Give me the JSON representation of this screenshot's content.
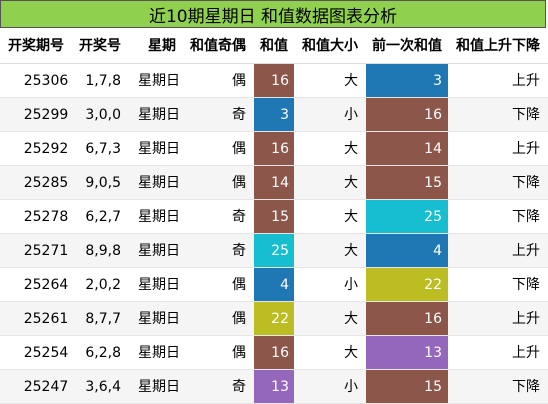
{
  "title": "近10期星期日 和值数据图表分析",
  "headers": [
    "开奖期号",
    "开奖号",
    "星期",
    "和值奇偶",
    "和值",
    "和值大小",
    "前一次和值",
    "和值上升下降"
  ],
  "colors": {
    "title_bg": "#8fd14f",
    "brown": "#8c564b",
    "blue": "#1f77b4",
    "cyan": "#17becf",
    "olive": "#bcbd22",
    "purple": "#9467bd"
  },
  "rows": [
    {
      "issue": "25306",
      "nums": "1,7,8",
      "weekday": "星期日",
      "parity": "偶",
      "sum": "16",
      "sum_color": "#8c564b",
      "size": "大",
      "prev_sum": "3",
      "prev_color": "#1f77b4",
      "trend": "上升"
    },
    {
      "issue": "25299",
      "nums": "3,0,0",
      "weekday": "星期日",
      "parity": "奇",
      "sum": "3",
      "sum_color": "#1f77b4",
      "size": "小",
      "prev_sum": "16",
      "prev_color": "#8c564b",
      "trend": "下降"
    },
    {
      "issue": "25292",
      "nums": "6,7,3",
      "weekday": "星期日",
      "parity": "偶",
      "sum": "16",
      "sum_color": "#8c564b",
      "size": "大",
      "prev_sum": "14",
      "prev_color": "#8c564b",
      "trend": "上升"
    },
    {
      "issue": "25285",
      "nums": "9,0,5",
      "weekday": "星期日",
      "parity": "偶",
      "sum": "14",
      "sum_color": "#8c564b",
      "size": "大",
      "prev_sum": "15",
      "prev_color": "#8c564b",
      "trend": "下降"
    },
    {
      "issue": "25278",
      "nums": "6,2,7",
      "weekday": "星期日",
      "parity": "奇",
      "sum": "15",
      "sum_color": "#8c564b",
      "size": "大",
      "prev_sum": "25",
      "prev_color": "#17becf",
      "trend": "下降"
    },
    {
      "issue": "25271",
      "nums": "8,9,8",
      "weekday": "星期日",
      "parity": "奇",
      "sum": "25",
      "sum_color": "#17becf",
      "size": "大",
      "prev_sum": "4",
      "prev_color": "#1f77b4",
      "trend": "上升"
    },
    {
      "issue": "25264",
      "nums": "2,0,2",
      "weekday": "星期日",
      "parity": "偶",
      "sum": "4",
      "sum_color": "#1f77b4",
      "size": "小",
      "prev_sum": "22",
      "prev_color": "#bcbd22",
      "trend": "下降"
    },
    {
      "issue": "25261",
      "nums": "8,7,7",
      "weekday": "星期日",
      "parity": "偶",
      "sum": "22",
      "sum_color": "#bcbd22",
      "size": "大",
      "prev_sum": "16",
      "prev_color": "#8c564b",
      "trend": "上升"
    },
    {
      "issue": "25254",
      "nums": "6,2,8",
      "weekday": "星期日",
      "parity": "偶",
      "sum": "16",
      "sum_color": "#8c564b",
      "size": "大",
      "prev_sum": "13",
      "prev_color": "#9467bd",
      "trend": "上升"
    },
    {
      "issue": "25247",
      "nums": "3,6,4",
      "weekday": "星期日",
      "parity": "奇",
      "sum": "13",
      "sum_color": "#9467bd",
      "size": "小",
      "prev_sum": "15",
      "prev_color": "#8c564b",
      "trend": "下降"
    }
  ]
}
